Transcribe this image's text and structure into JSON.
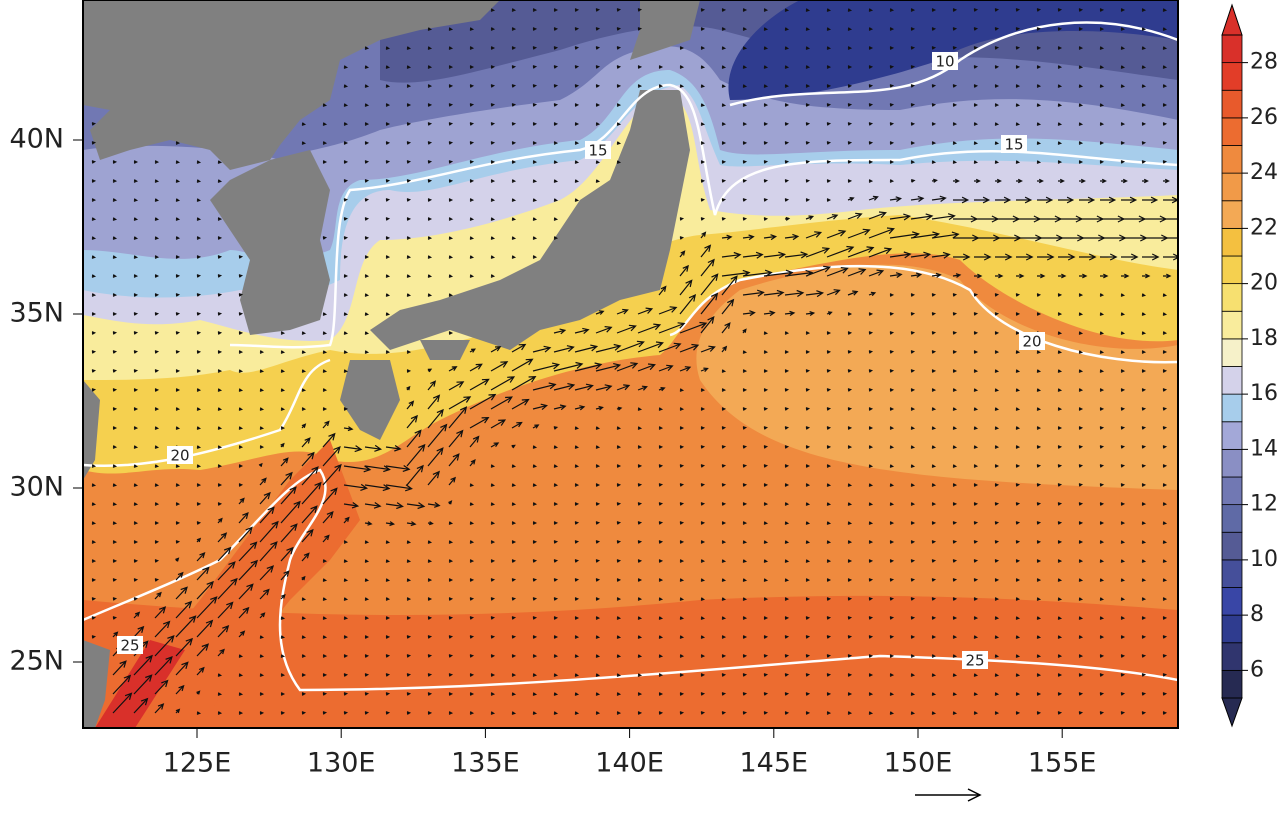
{
  "axes": {
    "lon_labels": [
      "125E",
      "130E",
      "135E",
      "140E",
      "145E",
      "150E",
      "155E"
    ],
    "lat_labels": [
      "40N",
      "35N",
      "30N",
      "25N"
    ]
  },
  "contour_labels": [
    "10",
    "15",
    "15",
    "20",
    "20",
    "25",
    "25"
  ],
  "colorbar": {
    "range": [
      5,
      29
    ],
    "labels": [
      6,
      8,
      10,
      12,
      14,
      16,
      18,
      20,
      22,
      24,
      26,
      28
    ],
    "colors": [
      "#262a52",
      "#30356e",
      "#2f3c8f",
      "#3946a6",
      "#454f9a",
      "#555b95",
      "#5f6aa6",
      "#7178b3",
      "#8a8fc4",
      "#a3a8d8",
      "#a7cdeb",
      "#d4d2ea",
      "#f6f1c9",
      "#f9ec9c",
      "#f7e070",
      "#f5d04f",
      "#f4c040",
      "#f3a955",
      "#f19a48",
      "#ef8a3e",
      "#ec6c30",
      "#e85a2c",
      "#e23d28",
      "#d9302a"
    ]
  }
}
